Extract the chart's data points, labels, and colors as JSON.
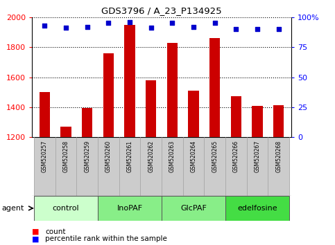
{
  "title": "GDS3796 / A_23_P134925",
  "samples": [
    "GSM520257",
    "GSM520258",
    "GSM520259",
    "GSM520260",
    "GSM520261",
    "GSM520262",
    "GSM520263",
    "GSM520264",
    "GSM520265",
    "GSM520266",
    "GSM520267",
    "GSM520268"
  ],
  "counts": [
    1500,
    1270,
    1395,
    1760,
    1950,
    1580,
    1830,
    1510,
    1860,
    1475,
    1410,
    1415
  ],
  "percentiles": [
    93,
    91,
    92,
    95,
    96,
    91,
    95,
    92,
    95,
    90,
    90,
    90
  ],
  "bar_color": "#cc0000",
  "dot_color": "#0000cc",
  "ymin": 1200,
  "ymax": 2000,
  "yticks": [
    1200,
    1400,
    1600,
    1800,
    2000
  ],
  "y2min": 0,
  "y2max": 100,
  "y2ticks": [
    0,
    25,
    50,
    75,
    100
  ],
  "groups": [
    {
      "label": "control",
      "start": 0,
      "end": 3,
      "color": "#ccffcc"
    },
    {
      "label": "InoPAF",
      "start": 3,
      "end": 6,
      "color": "#88ee88"
    },
    {
      "label": "GlcPAF",
      "start": 6,
      "end": 9,
      "color": "#88ee88"
    },
    {
      "label": "edelfosine",
      "start": 9,
      "end": 12,
      "color": "#44dd44"
    }
  ],
  "group_colors": [
    "#ccffcc",
    "#88ee88",
    "#88ee88",
    "#44dd44"
  ],
  "agent_label": "agent",
  "legend_count": "count",
  "legend_pct": "percentile rank within the sample",
  "xtick_bg": "#cccccc",
  "plot_bg": "#ffffff"
}
